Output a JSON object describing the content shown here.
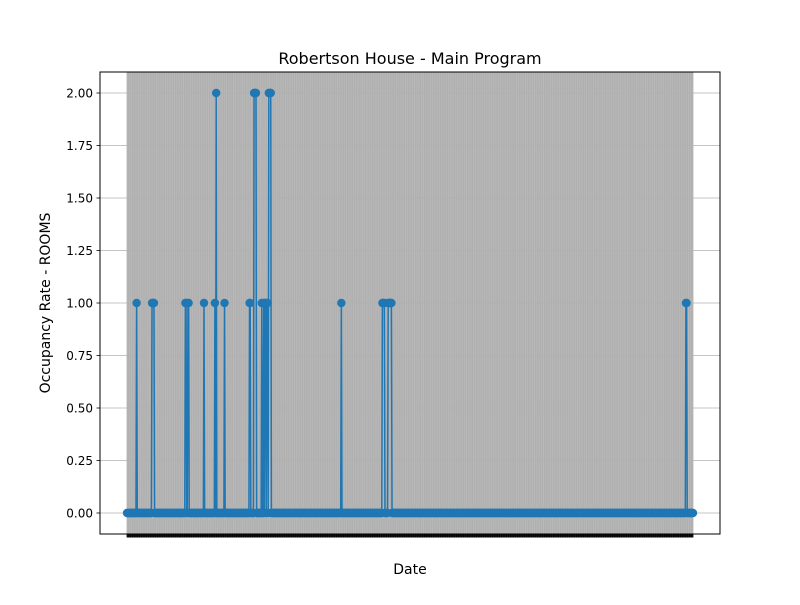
{
  "chart_data": {
    "type": "line",
    "title": "Robertson House - Main Program",
    "xlabel": "Date",
    "ylabel": "Occupancy Rate - ROOMS",
    "ylim": [
      -0.1,
      2.1
    ],
    "yticks": [
      "0.00",
      "0.25",
      "0.50",
      "0.75",
      "1.00",
      "1.25",
      "1.50",
      "1.75",
      "2.00"
    ],
    "grid": true,
    "marker": "circle",
    "series": [
      {
        "color": "#1f77b4",
        "values": [
          0,
          0,
          0,
          0,
          0,
          0,
          0,
          0,
          0,
          0,
          0,
          0,
          0,
          0,
          0,
          1,
          0,
          0,
          0,
          0,
          0,
          0,
          0,
          0,
          0,
          0,
          0,
          0,
          0,
          0,
          0,
          0,
          0,
          0,
          0,
          0,
          0,
          0,
          0,
          1,
          1,
          1,
          1,
          0,
          0,
          0,
          0,
          0,
          0,
          0,
          0,
          0,
          0,
          0,
          0,
          0,
          0,
          0,
          0,
          0,
          0,
          0,
          0,
          0,
          0,
          0,
          0,
          0,
          0,
          0,
          0,
          0,
          0,
          0,
          0,
          0,
          0,
          0,
          0,
          0,
          0,
          0,
          0,
          0,
          0,
          0,
          0,
          0,
          0,
          0,
          0,
          1,
          1,
          0,
          0,
          1,
          1,
          0,
          0,
          0,
          0,
          0,
          0,
          0,
          0,
          0,
          0,
          0,
          0,
          0,
          0,
          0,
          0,
          0,
          0,
          0,
          0,
          0,
          0,
          0,
          1,
          0,
          0,
          0,
          0,
          0,
          0,
          0,
          0,
          0,
          0,
          0,
          0,
          0,
          0,
          0,
          0,
          1,
          0,
          2,
          0,
          0,
          0,
          0,
          0,
          0,
          0,
          0,
          0,
          0,
          0,
          0,
          1,
          0,
          0,
          0,
          0,
          0,
          0,
          0,
          0,
          0,
          0,
          0,
          0,
          0,
          0,
          0,
          0,
          0,
          0,
          0,
          0,
          0,
          0,
          0,
          0,
          0,
          0,
          0,
          0,
          0,
          0,
          0,
          0,
          0,
          0,
          0,
          0,
          0,
          0,
          1,
          1,
          0,
          0,
          0,
          0,
          0,
          2,
          2,
          2,
          2,
          0,
          0,
          0,
          0,
          0,
          0,
          0,
          0,
          1,
          0,
          0,
          1,
          0,
          1,
          1,
          0,
          1,
          1,
          0,
          2,
          2,
          2,
          2,
          0,
          0,
          0,
          0,
          0,
          0,
          0,
          0,
          0,
          0,
          0,
          0,
          0,
          0,
          0,
          0,
          0,
          0,
          0,
          0,
          0,
          0,
          0,
          0,
          0,
          0,
          0,
          0,
          0,
          0,
          0,
          0,
          0,
          0,
          0,
          0,
          0,
          0,
          0,
          0,
          0,
          0,
          0,
          0,
          0,
          0,
          0,
          0,
          0,
          0,
          0,
          0,
          0,
          0,
          0,
          0,
          0,
          0,
          0,
          0,
          0,
          0,
          0,
          0,
          0,
          0,
          0,
          0,
          0,
          0,
          0,
          0,
          0,
          0,
          0,
          0,
          0,
          0,
          0,
          0,
          0,
          0,
          0,
          0,
          0,
          0,
          0,
          0,
          0,
          0,
          0,
          0,
          0,
          0,
          0,
          0,
          0,
          0,
          0,
          0,
          0,
          0,
          0,
          0,
          0,
          0,
          0,
          0,
          0,
          1,
          0,
          0,
          0,
          0,
          0,
          0,
          0,
          0,
          0,
          0,
          0,
          0,
          0,
          0,
          0,
          0,
          0,
          0,
          0,
          0,
          0,
          0,
          0,
          0,
          0,
          0,
          0,
          0,
          0,
          0,
          0,
          0,
          0,
          0,
          0,
          0,
          0,
          0,
          0,
          0,
          0,
          0,
          0,
          0,
          0,
          0,
          0,
          0,
          0,
          0,
          0,
          0,
          0,
          0,
          0,
          0,
          0,
          0,
          0,
          0,
          0,
          0,
          0,
          1,
          1,
          1,
          1,
          0,
          0,
          0,
          0,
          0,
          1,
          1,
          1,
          1,
          1,
          1,
          0,
          0,
          0,
          0,
          0,
          0,
          0,
          0,
          0,
          0,
          0,
          0,
          0,
          0,
          0,
          0,
          0,
          0,
          0,
          0,
          0,
          0,
          0,
          0,
          0,
          0,
          0,
          0,
          0,
          0,
          0,
          0,
          0,
          0,
          0,
          0,
          0,
          0,
          0,
          0,
          0,
          0,
          0,
          0,
          0,
          0,
          0,
          0,
          0,
          0,
          0,
          0,
          0,
          0,
          0,
          0,
          0,
          0,
          0,
          0,
          0,
          0,
          0,
          0,
          0,
          0,
          0,
          0,
          0,
          0,
          0,
          0,
          0,
          0,
          0,
          0,
          0,
          0,
          0,
          0,
          0,
          0,
          0,
          0,
          0,
          0,
          0,
          0,
          0,
          0,
          0,
          0,
          0,
          0,
          0,
          0,
          0,
          0,
          0,
          0,
          0,
          0,
          0,
          0,
          0,
          0,
          0,
          0,
          0,
          0,
          0,
          0,
          0,
          0,
          0,
          0,
          0,
          0,
          0,
          0,
          0,
          0,
          0,
          0,
          0,
          0,
          0,
          0,
          0,
          0,
          0,
          0,
          0,
          0,
          0,
          0,
          0,
          0,
          0,
          0,
          0,
          0,
          0,
          0,
          0,
          0,
          0,
          0,
          0,
          0,
          0,
          0,
          0,
          0,
          0,
          0,
          0,
          0,
          0,
          0,
          0,
          0,
          0,
          0,
          0,
          0,
          0,
          0,
          0,
          0,
          0,
          0,
          0,
          0,
          0,
          0,
          0,
          0,
          0,
          0,
          0,
          0,
          0,
          0,
          0,
          0,
          0,
          0,
          0,
          0,
          0,
          0,
          0,
          0,
          0,
          0,
          0,
          0,
          0,
          0,
          0,
          0,
          0,
          0,
          0,
          0,
          0,
          0,
          0,
          0,
          0,
          0,
          0,
          0,
          0,
          0,
          0,
          0,
          0,
          0,
          0,
          0,
          0,
          0,
          0,
          0,
          0,
          0,
          0,
          0,
          0,
          0,
          0,
          0,
          0,
          0,
          0,
          0,
          0,
          0,
          0,
          0,
          0,
          0,
          0,
          0,
          0,
          0,
          0,
          0,
          0,
          0,
          0,
          0,
          0,
          0,
          0,
          0,
          0,
          0,
          0,
          0,
          0,
          0,
          0,
          0,
          0,
          0,
          0,
          0,
          0,
          0,
          0,
          0,
          0,
          0,
          0,
          0,
          0,
          0,
          0,
          0,
          0,
          0,
          0,
          0,
          0,
          0,
          0,
          0,
          0,
          0,
          0,
          0,
          0,
          0,
          0,
          0,
          0,
          0,
          0,
          0,
          0,
          0,
          0,
          0,
          0,
          0,
          0,
          0,
          0,
          0,
          0,
          0,
          0,
          0,
          0,
          0,
          0,
          0,
          0,
          0,
          0,
          0,
          0,
          0,
          0,
          0,
          0,
          0,
          0,
          0,
          0,
          0,
          0,
          0,
          0,
          0,
          0,
          0,
          0,
          0,
          0,
          0,
          0,
          0,
          0,
          0,
          0,
          0,
          0,
          0,
          0,
          0,
          0,
          0,
          0,
          0,
          0,
          0,
          0,
          0,
          0,
          0,
          0,
          0,
          0,
          0,
          0,
          0,
          0,
          0,
          0,
          0,
          0,
          0,
          0,
          0,
          0,
          0,
          0,
          0,
          0,
          0,
          0,
          0,
          0,
          0,
          0,
          0,
          0,
          0,
          0,
          0,
          0,
          0,
          0,
          0,
          0,
          0,
          0,
          0,
          0,
          0,
          0,
          0,
          0,
          0,
          0,
          0,
          0,
          0,
          0,
          0,
          0,
          0,
          0,
          0,
          0,
          0,
          0,
          0,
          0,
          0,
          0,
          0,
          0,
          0,
          0,
          0,
          0,
          0,
          0,
          0,
          0,
          0,
          0,
          0,
          0,
          0,
          0,
          0,
          0,
          0,
          0,
          0,
          0,
          0,
          0,
          0,
          0,
          0,
          0,
          0,
          0,
          0,
          0,
          0,
          1,
          1,
          0,
          0,
          0,
          0,
          0,
          0,
          0,
          0,
          0,
          0
        ]
      }
    ]
  }
}
